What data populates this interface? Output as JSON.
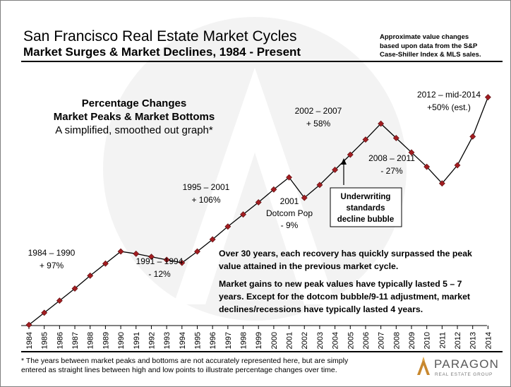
{
  "header": {
    "title": "San Francisco Real Estate Market Cycles",
    "subtitle": "Market Surges & Market Declines, 1984 - Present",
    "source_note": [
      "Approximate value changes",
      "based upon data from the S&P",
      "Case-Shiller Index & MLS sales."
    ]
  },
  "chart_data": {
    "type": "line",
    "title": "Percentage Changes",
    "subtitle": [
      "Market Peaks & Market Bottoms",
      "A simplified, smoothed out graph*"
    ],
    "x": [
      "1984",
      "1985",
      "1986",
      "1987",
      "1988",
      "1989",
      "1990",
      "1991",
      "1992",
      "1993",
      "1994",
      "1995",
      "1996",
      "1997",
      "1998",
      "1999",
      "2000",
      "2001",
      "2002",
      "2003",
      "2004",
      "2005",
      "2006",
      "2007",
      "2008",
      "2009",
      "2010",
      "2011",
      "2012",
      "2013",
      "2014"
    ],
    "series": [
      {
        "values": [
          100,
          116,
          132,
          148,
          165,
          181,
          197,
          194,
          190,
          186,
          182,
          197,
          213,
          230,
          246,
          262,
          279,
          295,
          268,
          285,
          305,
          325,
          345,
          366,
          347,
          328,
          309,
          287,
          311,
          349,
          401
        ]
      }
    ],
    "ylim": [
      100,
      410
    ],
    "grid": false,
    "legend": "none",
    "colors": {
      "line": "#000000",
      "marker": "#a21d21",
      "marker_edge": "#5a0d0f"
    },
    "annotations": [
      {
        "lines": [
          "1984 – 1990",
          "+ 97%"
        ]
      },
      {
        "lines": [
          "1991 – 1994",
          "- 12%"
        ]
      },
      {
        "lines": [
          "1995 – 2001",
          "+ 106%"
        ]
      },
      {
        "lines": [
          "2001",
          "Dotcom Pop",
          "- 9%"
        ]
      },
      {
        "lines": [
          "2002 – 2007",
          "+ 58%"
        ]
      },
      {
        "lines": [
          "2008 – 2011",
          "- 27%"
        ]
      },
      {
        "lines": [
          "2012 – mid-2014",
          "+50% (est.)"
        ]
      },
      {
        "lines": [
          "Underwriting",
          "standards",
          "decline bubble"
        ]
      },
      {
        "lines": [
          "Over 30 years, each recovery has quickly surpassed  the peak",
          "value attained in the previous market cycle."
        ]
      },
      {
        "lines": [
          "Market gains  to new peak values have typically lasted 5 – 7",
          "years. Except for the dotcom bubble/9-11 adjustment, market",
          "declines/recessions have typically lasted 4 years."
        ]
      }
    ]
  },
  "footnote": [
    "* The years between market peaks and bottoms are not accurately represented here, but are simply",
    "entered as straight lines between high and low points to illustrate percentage changes over time."
  ],
  "logo": {
    "name": "PARAGON",
    "tagline": "REAL ESTATE GROUP",
    "colors": {
      "emblem": "#c8882f",
      "text": "#5a5a5a"
    }
  }
}
